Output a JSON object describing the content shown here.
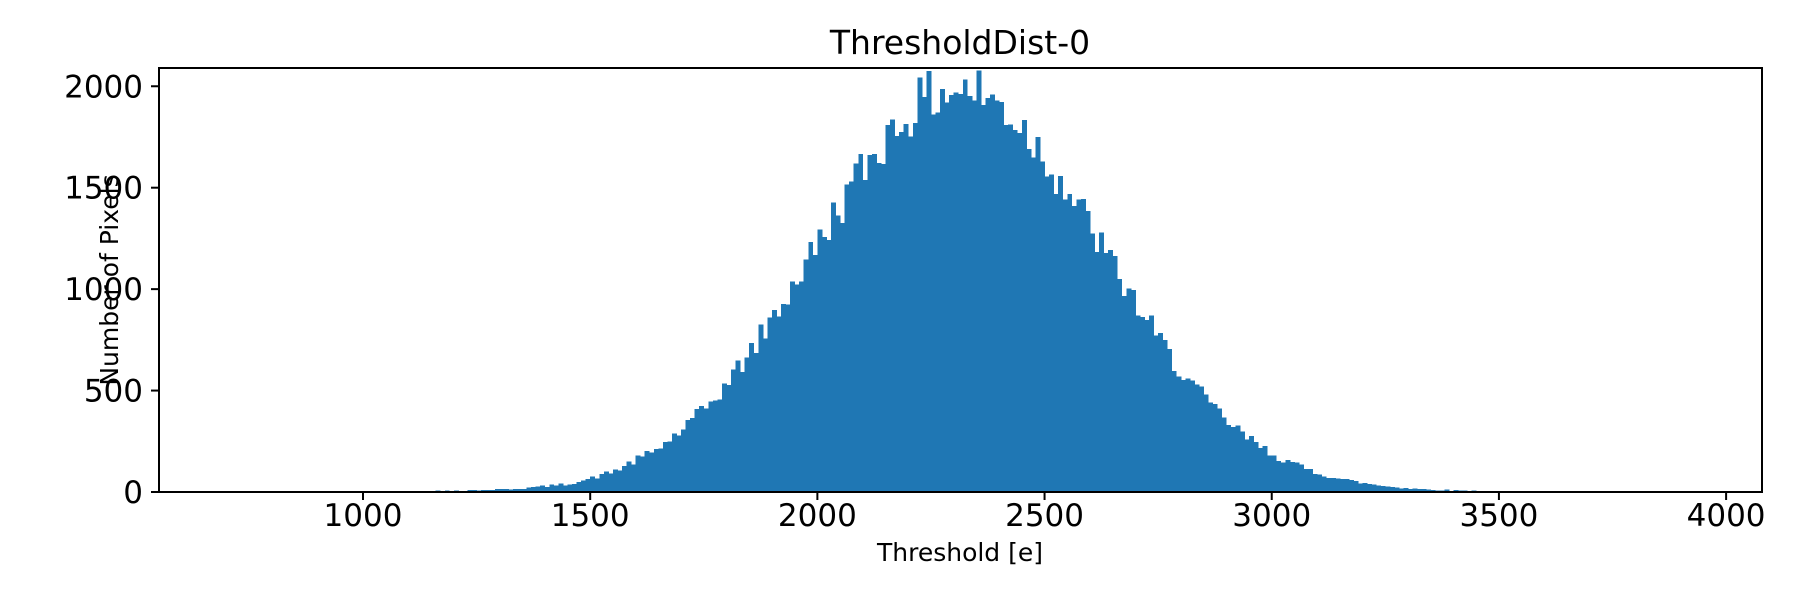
{
  "chart_data": {
    "type": "bar",
    "subtype": "histogram",
    "title": "ThresholdDist-0",
    "xlabel": "Threshold [e]",
    "ylabel": "Number of Pixels",
    "xlim": [
      551,
      4079
    ],
    "ylim": [
      0,
      2090
    ],
    "x_ticks": [
      1000,
      1500,
      2000,
      2500,
      3000,
      3500,
      4000
    ],
    "y_ticks": [
      0,
      500,
      1000,
      1500,
      2000
    ],
    "grid": false,
    "legend": "none",
    "bar_color": "#1f77b4",
    "background_color": "#ffffff",
    "bin_width": 10,
    "bins_start": 850,
    "bins_end": 3950,
    "distribution": {
      "shape": "gaussian",
      "mean": 2310,
      "sigma": 315,
      "peak_count": 1990,
      "data_min": 950,
      "data_max": 3800
    },
    "envelope": {
      "x_start": 850,
      "x_step": 50,
      "counts": [
        0,
        0,
        5,
        2,
        3,
        4,
        5,
        7,
        9,
        13,
        18,
        28,
        40,
        65,
        100,
        155,
        215,
        300,
        405,
        530,
        680,
        850,
        1030,
        1220,
        1410,
        1590,
        1745,
        1870,
        1950,
        1990,
        1975,
        1910,
        1805,
        1660,
        1490,
        1305,
        1115,
        930,
        755,
        600,
        465,
        350,
        260,
        190,
        135,
        95,
        65,
        44,
        29,
        19,
        12,
        8,
        5,
        4,
        3,
        3,
        2,
        2,
        3,
        1,
        0,
        0,
        0
      ]
    },
    "noise": {
      "seed": 42,
      "rel": 0.05,
      "sqrt_amp": 0.9
    }
  }
}
